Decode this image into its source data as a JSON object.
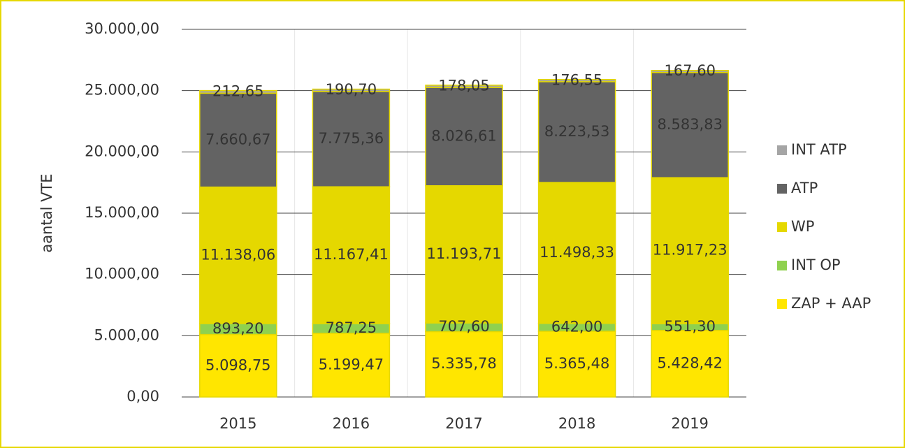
{
  "chart_data": {
    "type": "stacked_bar",
    "ylabel": "aantal VTE",
    "categories": [
      "2015",
      "2016",
      "2017",
      "2018",
      "2019"
    ],
    "series": [
      {
        "name": "ZAP + AAP",
        "color": "#ffe600",
        "values": [
          5098.75,
          5199.47,
          5335.78,
          5365.48,
          5428.42
        ],
        "value_labels": [
          "5.098,75",
          "5.199,47",
          "5.335,78",
          "5.365,48",
          "5.428,42"
        ]
      },
      {
        "name": "INT OP",
        "color": "#8fd14f",
        "values": [
          893.2,
          787.25,
          707.6,
          642.0,
          551.3
        ],
        "value_labels": [
          "893,20",
          "787,25",
          "707,60",
          "642,00",
          "551,30"
        ]
      },
      {
        "name": "WP",
        "color": "#e5d800",
        "values": [
          11138.06,
          11167.41,
          11193.71,
          11498.33,
          11917.23
        ],
        "value_labels": [
          "11.138,06",
          "11.167,41",
          "11.193,71",
          "11.498,33",
          "11.917,23"
        ]
      },
      {
        "name": "ATP",
        "color": "#636363",
        "values": [
          7660.67,
          7775.36,
          8026.61,
          8223.53,
          8583.83
        ],
        "value_labels": [
          "7.660,67",
          "7.775,36",
          "8.026,61",
          "8.223,53",
          "8.583,83"
        ]
      },
      {
        "name": "INT ATP",
        "color": "#a5a5a5",
        "values": [
          212.65,
          190.7,
          178.05,
          176.55,
          167.6
        ],
        "value_labels": [
          "212,65",
          "190,70",
          "178,05",
          "176,55",
          "167,60"
        ]
      }
    ],
    "ylim": [
      0,
      30000
    ],
    "yticks": [
      {
        "value": 0,
        "label": "0,00"
      },
      {
        "value": 5000,
        "label": "5.000,00"
      },
      {
        "value": 10000,
        "label": "10.000,00"
      },
      {
        "value": 15000,
        "label": "15.000,00"
      },
      {
        "value": 20000,
        "label": "20.000,00"
      },
      {
        "value": 25000,
        "label": "25.000,00"
      },
      {
        "value": 30000,
        "label": "30.000,00"
      }
    ],
    "grid": true,
    "legend": "right"
  }
}
